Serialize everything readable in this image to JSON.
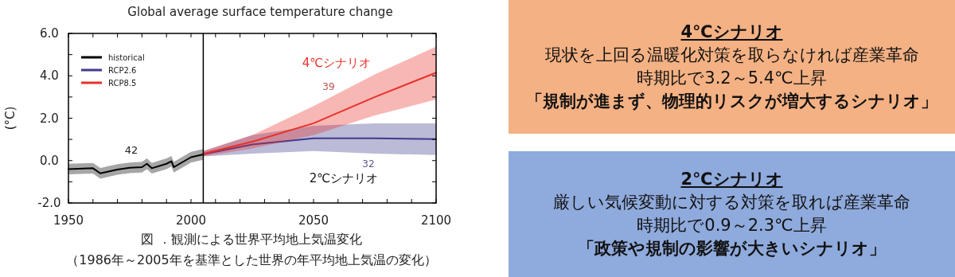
{
  "chart_data": [
    {
      "type": "line",
      "title": "Global average surface temperature change",
      "ylabel": "(°C)",
      "xlim": [
        1950,
        2100
      ],
      "ylim": [
        -2,
        6
      ],
      "xticks": [
        1950,
        {
          "value": 1960,
          "label": null
        },
        {
          "value": 1970,
          "label": null
        },
        {
          "value": 1980,
          "label": null
        },
        {
          "value": 1990,
          "label": null
        },
        2000,
        {
          "value": 2010,
          "label": null
        },
        {
          "value": 2020,
          "label": null
        },
        {
          "value": 2030,
          "label": null
        },
        {
          "value": 2040,
          "label": null
        },
        2050,
        {
          "value": 2060,
          "label": null
        },
        {
          "value": 2070,
          "label": null
        },
        {
          "value": 2080,
          "label": null
        },
        {
          "value": 2090,
          "label": null
        },
        2100
      ],
      "yticks": [
        {
          "value": -2,
          "label": "-2.0"
        },
        {
          "value": -1,
          "label": null
        },
        {
          "value": 0,
          "label": "0.0"
        },
        {
          "value": 1,
          "label": null
        },
        {
          "value": 2,
          "label": "2.0"
        },
        {
          "value": 3,
          "label": null
        },
        {
          "value": 4,
          "label": "4.0"
        },
        {
          "value": 5,
          "label": null
        },
        {
          "value": 6,
          "label": "6.0"
        }
      ],
      "legend": "top left",
      "series": [
        {
          "name": "historical",
          "color": "#000000",
          "x": [
            1950,
            1960,
            1963,
            1970,
            1975,
            1980,
            1982,
            1984,
            1990,
            1992,
            1993,
            2000,
            2005
          ],
          "values": [
            -0.4,
            -0.36,
            -0.6,
            -0.42,
            -0.34,
            -0.31,
            -0.15,
            -0.36,
            -0.15,
            -0.03,
            -0.31,
            0.16,
            0.29
          ],
          "lower": [
            -0.65,
            -0.61,
            -0.85,
            -0.67,
            -0.59,
            -0.56,
            -0.4,
            -0.61,
            -0.4,
            -0.28,
            -0.56,
            -0.09,
            0.04
          ],
          "upper": [
            -0.15,
            -0.11,
            -0.35,
            -0.17,
            -0.09,
            -0.06,
            0.1,
            -0.11,
            0.1,
            0.22,
            -0.06,
            0.41,
            0.54
          ]
        },
        {
          "name": "RCP2.6",
          "color": "#3d3a8c",
          "x": [
            2005,
            2025,
            2050,
            2075,
            2100
          ],
          "values": [
            0.3,
            0.76,
            1.05,
            1.05,
            1.01
          ],
          "lower": [
            0.2,
            0.33,
            0.45,
            0.33,
            0.26
          ],
          "upper": [
            0.45,
            1.2,
            1.64,
            1.76,
            1.76
          ]
        },
        {
          "name": "RCP8.5",
          "color": "#e8312a",
          "x": [
            2005,
            2025,
            2050,
            2075,
            2100
          ],
          "values": [
            0.33,
            0.89,
            1.76,
            3.0,
            4.15
          ],
          "lower": [
            0.2,
            0.57,
            1.2,
            2.13,
            2.88
          ],
          "upper": [
            0.45,
            1.2,
            2.57,
            4.07,
            5.38
          ]
        }
      ],
      "ref_lines": [
        {
          "axis": "x",
          "value": 2005,
          "color": "#000000"
        }
      ],
      "annotations": [
        "42",
        "39",
        "32",
        "4℃シナリオ",
        "2℃シナリオ",
        "図 ．観測による世界平均地上気温変化",
        "（1986年～2005年を基準とした世界の年平均地上気温の変化）"
      ]
    },
    {
      "type": "other",
      "title": "4℃シナリオ",
      "color": "#f4b183",
      "annotations": [
        "現状を上回る温暖化対策を取らなければ産業革命",
        "時期比で3.2～5.4℃上昇",
        "「規制が進まず、物理的リスクが増大するシナリオ」"
      ]
    },
    {
      "type": "other",
      "title": "2℃シナリオ",
      "color": "#8faadc",
      "annotations": [
        "厳しい気候変動に対する対策を取れば産業革命",
        "時期比で0.9～2.3℃上昇",
        "「政策や規制の影響が大きいシナリオ」"
      ]
    }
  ]
}
